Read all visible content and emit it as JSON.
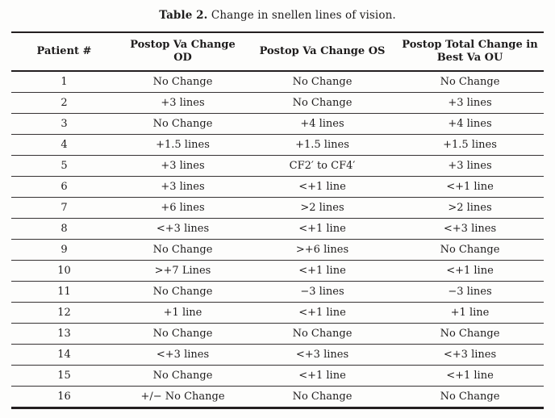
{
  "caption": {
    "label": "Table 2.",
    "text": "Change in snellen lines of vision."
  },
  "table": {
    "columns": [
      {
        "label": "Patient #"
      },
      {
        "label": "Postop Va Change OD"
      },
      {
        "label": "Postop Va Change OS"
      },
      {
        "label": "Postop Total Change in Best Va OU"
      }
    ],
    "rows": [
      [
        "1",
        "No Change",
        "No Change",
        "No Change"
      ],
      [
        "2",
        "+3 lines",
        "No Change",
        "+3 lines"
      ],
      [
        "3",
        "No Change",
        "+4 lines",
        "+4 lines"
      ],
      [
        "4",
        "+1.5 lines",
        "+1.5 lines",
        "+1.5 lines"
      ],
      [
        "5",
        "+3 lines",
        "CF2′ to CF4′",
        "+3 lines"
      ],
      [
        "6",
        "+3 lines",
        "<+1 line",
        "<+1 line"
      ],
      [
        "7",
        "+6 lines",
        ">2 lines",
        ">2 lines"
      ],
      [
        "8",
        "<+3 lines",
        "<+1 line",
        "<+3 lines"
      ],
      [
        "9",
        "No Change",
        ">+6 lines",
        "No Change"
      ],
      [
        "10",
        ">+7 Lines",
        "<+1 line",
        "<+1 line"
      ],
      [
        "11",
        "No Change",
        "−3 lines",
        "−3 lines"
      ],
      [
        "12",
        "+1 line",
        "<+1 line",
        "+1 line"
      ],
      [
        "13",
        "No Change",
        "No Change",
        "No Change"
      ],
      [
        "14",
        "<+3 lines",
        "<+3 lines",
        "<+3 lines"
      ],
      [
        "15",
        "No Change",
        "<+1 line",
        "<+1 line"
      ],
      [
        "16",
        "+/− No Change",
        "No Change",
        "No Change"
      ]
    ]
  }
}
